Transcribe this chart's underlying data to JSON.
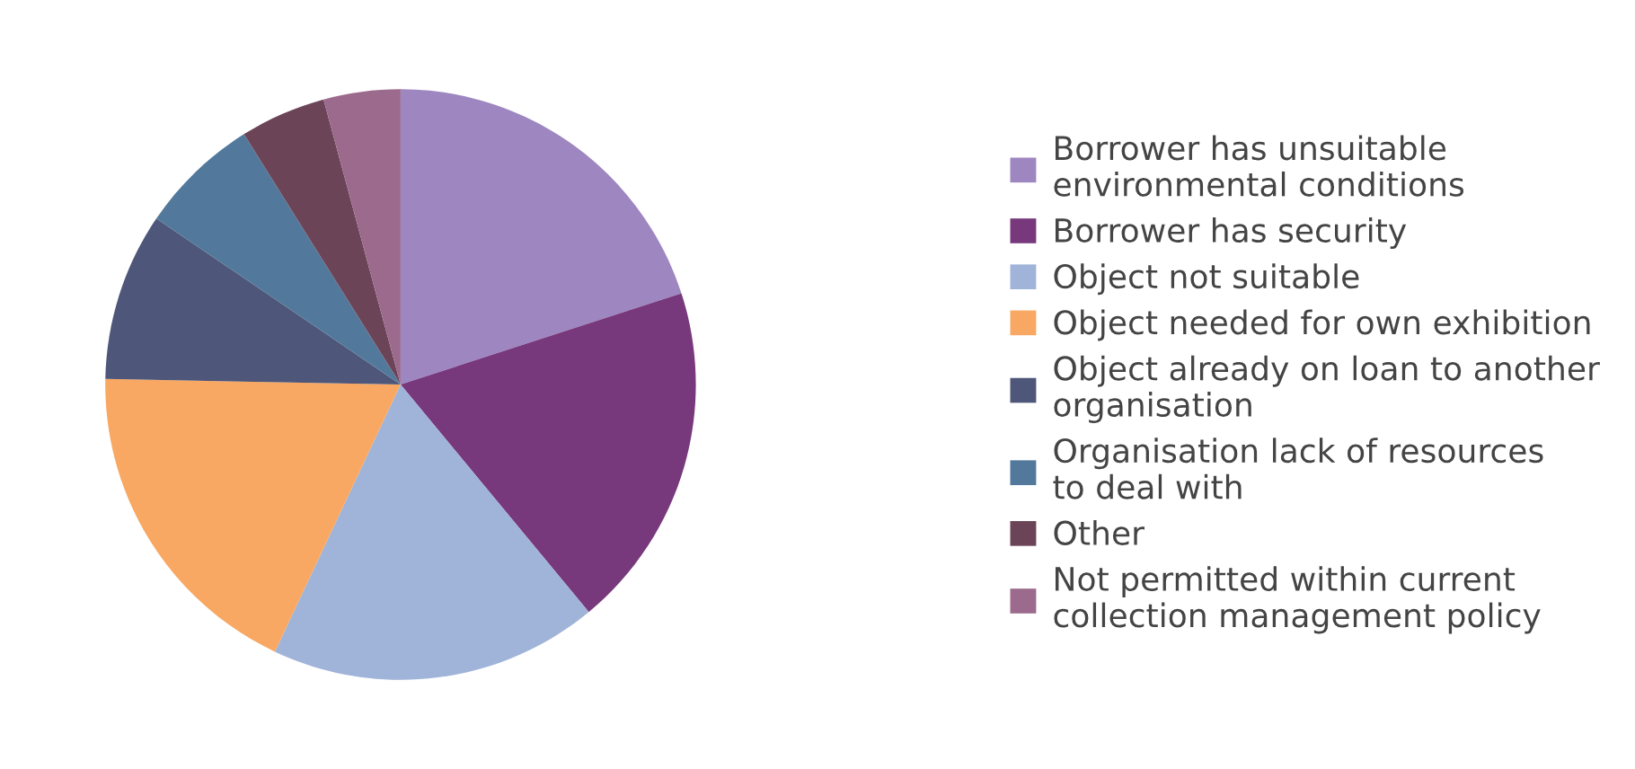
{
  "chart_data": {
    "type": "pie",
    "categories": [
      "Borrower has unsuitable\nenvironmental conditions",
      "Borrower has security",
      "Object not suitable",
      "Object needed for own exhibition",
      "Object already on loan to another\norganisation",
      "Organisation lack of resources\nto deal with",
      "Other",
      "Not permitted within current\ncollection management policy"
    ],
    "values": [
      20,
      19,
      18,
      18.3,
      9.2,
      6.6,
      4.7,
      4.2
    ],
    "colors": [
      "#9e86c0",
      "#77397c",
      "#a0b3d8",
      "#f8a862",
      "#4e5679",
      "#52799b",
      "#6c4458",
      "#9c6a8d"
    ],
    "legend": "right"
  }
}
